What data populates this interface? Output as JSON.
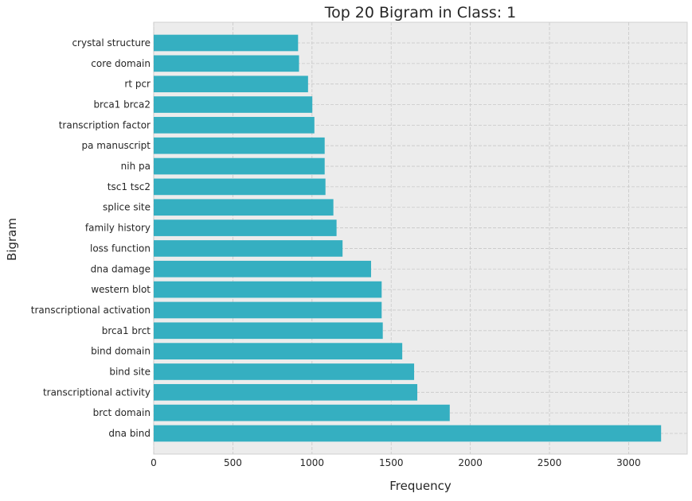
{
  "chart_data": {
    "type": "bar",
    "orientation": "horizontal",
    "title": "Top 20 Bigram in Class: 1",
    "xlabel": "Frequency",
    "ylabel": "Bigram",
    "xlim": [
      0,
      3370
    ],
    "xticks": [
      0,
      500,
      1000,
      1500,
      2000,
      2500,
      3000
    ],
    "grid": true,
    "bar_color": "#35afc1",
    "background_color": "#ececec",
    "grid_color": "#c8c8c8",
    "categories": [
      "crystal structure",
      "core domain",
      "rt pcr",
      "brca1 brca2",
      "transcription factor",
      "pa manuscript",
      "nih pa",
      "tsc1 tsc2",
      "splice site",
      "family history",
      "loss function",
      "dna damage",
      "western blot",
      "transcriptional activation",
      "brca1 brct",
      "bind domain",
      "bind site",
      "transcriptional activity",
      "brct domain",
      "dna bind"
    ],
    "values": [
      912,
      918,
      975,
      1002,
      1015,
      1080,
      1080,
      1085,
      1135,
      1155,
      1193,
      1373,
      1440,
      1440,
      1447,
      1570,
      1645,
      1665,
      1870,
      3205
    ]
  }
}
